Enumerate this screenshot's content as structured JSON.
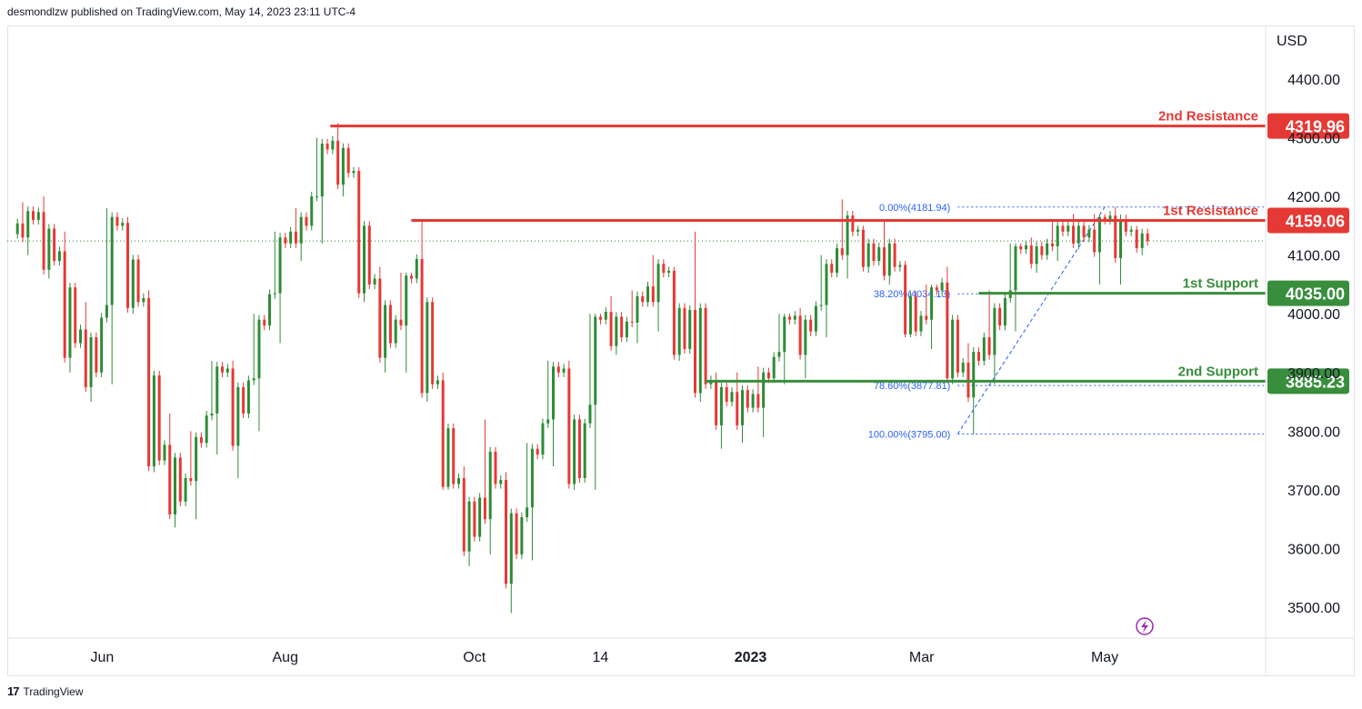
{
  "header": {
    "published": "desmondlzw published on TradingView.com, May 14, 2023 23:11 UTC-4"
  },
  "footer": {
    "brand": "TradingView",
    "logo": "tradingview-logo-icon"
  },
  "colors": {
    "up": "#2e8b36",
    "down": "#e53935",
    "resistance": "#e53935",
    "support": "#388e3c",
    "fib": "#2962ff",
    "grid_dots": "#2e7d32",
    "bolt": "#9c27b0"
  },
  "chart_data": {
    "type": "candlestick",
    "currency": "USD",
    "y_ticks": [
      "4400.00",
      "4300.00",
      "4200.00",
      "4100.00",
      "4000.00",
      "3900.00",
      "3800.00",
      "3700.00",
      "3600.00",
      "3500.00"
    ],
    "ylim": [
      3475,
      4475
    ],
    "x_ticks": [
      {
        "label": "Jun",
        "date": "2022-06-01",
        "bold": false
      },
      {
        "label": "Aug",
        "date": "2022-08-01",
        "bold": false
      },
      {
        "label": "Oct",
        "date": "2022-10-03",
        "bold": false
      },
      {
        "label": "14",
        "date": "2022-11-14",
        "bold": false
      },
      {
        "label": "2023",
        "date": "2023-01-03",
        "bold": true
      },
      {
        "label": "Mar",
        "date": "2023-03-01",
        "bold": false
      },
      {
        "label": "May",
        "date": "2023-05-01",
        "bold": false
      }
    ],
    "levels": [
      {
        "name": "2nd Resistance",
        "value": 4319.96,
        "tag": "4319.96",
        "kind": "resistance",
        "from": "2022-08-16"
      },
      {
        "name": "1st Resistance",
        "value": 4159.06,
        "tag": "4159.06",
        "kind": "resistance",
        "from": "2022-09-12"
      },
      {
        "name": "1st Support",
        "value": 4035.0,
        "tag": "4035.00",
        "kind": "support",
        "from": "2023-03-20"
      },
      {
        "name": "2nd Support",
        "value": 3885.23,
        "tag": "3885.23",
        "kind": "support",
        "from": "2022-12-19"
      }
    ],
    "last_price": 4124,
    "fibonacci": {
      "from": "2023-03-13",
      "levels": [
        {
          "label": "0.00%(4181.94)",
          "value": 4181.94
        },
        {
          "label": "38.20%(4034.13)",
          "value": 4034.13
        },
        {
          "label": "78.60%(3877.81)",
          "value": 3877.81
        },
        {
          "label": "100.00%(3795.00)",
          "value": 3795.0
        }
      ],
      "trend": [
        {
          "date": "2023-03-13",
          "value": 3795.0
        },
        {
          "date": "2023-05-01",
          "value": 4181.94
        }
      ]
    },
    "candles": [
      {
        "d": "2022-05-02",
        "o": 4136,
        "h": 4190,
        "l": 4100,
        "c": 4160
      },
      {
        "d": "2022-05-09",
        "o": 4160,
        "h": 4200,
        "l": 4060,
        "c": 4090
      },
      {
        "d": "2022-05-16",
        "o": 4090,
        "h": 4140,
        "l": 3900,
        "c": 3950
      },
      {
        "d": "2022-05-23",
        "o": 3950,
        "h": 4020,
        "l": 3850,
        "c": 3900
      },
      {
        "d": "2022-05-30",
        "o": 3900,
        "h": 4180,
        "l": 3880,
        "c": 4150
      },
      {
        "d": "2022-06-06",
        "o": 4150,
        "h": 4165,
        "l": 4000,
        "c": 4020
      },
      {
        "d": "2022-06-13",
        "o": 4020,
        "h": 4040,
        "l": 3730,
        "c": 3750
      },
      {
        "d": "2022-06-20",
        "o": 3750,
        "h": 3830,
        "l": 3636,
        "c": 3680
      },
      {
        "d": "2022-06-27",
        "o": 3680,
        "h": 3800,
        "l": 3650,
        "c": 3780
      },
      {
        "d": "2022-07-04",
        "o": 3780,
        "h": 3920,
        "l": 3760,
        "c": 3900
      },
      {
        "d": "2022-07-11",
        "o": 3900,
        "h": 3920,
        "l": 3720,
        "c": 3830
      },
      {
        "d": "2022-07-18",
        "o": 3830,
        "h": 4000,
        "l": 3800,
        "c": 3980
      },
      {
        "d": "2022-07-25",
        "o": 3980,
        "h": 4140,
        "l": 3950,
        "c": 4120
      },
      {
        "d": "2022-08-01",
        "o": 4120,
        "h": 4180,
        "l": 4090,
        "c": 4150
      },
      {
        "d": "2022-08-08",
        "o": 4150,
        "h": 4300,
        "l": 4120,
        "c": 4280
      },
      {
        "d": "2022-08-15",
        "o": 4280,
        "h": 4325,
        "l": 4200,
        "c": 4240
      },
      {
        "d": "2022-08-22",
        "o": 4240,
        "h": 4250,
        "l": 4020,
        "c": 4050
      },
      {
        "d": "2022-08-29",
        "o": 4050,
        "h": 4080,
        "l": 3900,
        "c": 3950
      },
      {
        "d": "2022-09-05",
        "o": 3950,
        "h": 4070,
        "l": 3900,
        "c": 4060
      },
      {
        "d": "2022-09-12",
        "o": 4060,
        "h": 4160,
        "l": 3850,
        "c": 3880
      },
      {
        "d": "2022-09-19",
        "o": 3880,
        "h": 3900,
        "l": 3700,
        "c": 3710
      },
      {
        "d": "2022-09-26",
        "o": 3710,
        "h": 3740,
        "l": 3570,
        "c": 3620
      },
      {
        "d": "2022-10-03",
        "o": 3620,
        "h": 3820,
        "l": 3590,
        "c": 3710
      },
      {
        "d": "2022-10-10",
        "o": 3710,
        "h": 3730,
        "l": 3490,
        "c": 3590
      },
      {
        "d": "2022-10-17",
        "o": 3590,
        "h": 3780,
        "l": 3580,
        "c": 3760
      },
      {
        "d": "2022-10-24",
        "o": 3760,
        "h": 3920,
        "l": 3740,
        "c": 3900
      },
      {
        "d": "2022-10-31",
        "o": 3900,
        "h": 3920,
        "l": 3700,
        "c": 3720
      },
      {
        "d": "2022-11-07",
        "o": 3720,
        "h": 4000,
        "l": 3700,
        "c": 3990
      },
      {
        "d": "2022-11-14",
        "o": 3990,
        "h": 4030,
        "l": 3930,
        "c": 3960
      },
      {
        "d": "2022-11-21",
        "o": 3960,
        "h": 4040,
        "l": 3950,
        "c": 4020
      },
      {
        "d": "2022-11-28",
        "o": 4020,
        "h": 4100,
        "l": 3970,
        "c": 4070
      },
      {
        "d": "2022-12-05",
        "o": 4070,
        "h": 4080,
        "l": 3920,
        "c": 3940
      },
      {
        "d": "2022-12-12",
        "o": 3940,
        "h": 4140,
        "l": 3850,
        "c": 3880
      },
      {
        "d": "2022-12-19",
        "o": 3880,
        "h": 3900,
        "l": 3770,
        "c": 3850
      },
      {
        "d": "2022-12-26",
        "o": 3850,
        "h": 3900,
        "l": 3780,
        "c": 3840
      },
      {
        "d": "2023-01-02",
        "o": 3840,
        "h": 3910,
        "l": 3790,
        "c": 3890
      },
      {
        "d": "2023-01-09",
        "o": 3890,
        "h": 4000,
        "l": 3880,
        "c": 3990
      },
      {
        "d": "2023-01-16",
        "o": 3990,
        "h": 4010,
        "l": 3890,
        "c": 3970
      },
      {
        "d": "2023-01-23",
        "o": 3970,
        "h": 4100,
        "l": 3960,
        "c": 4070
      },
      {
        "d": "2023-01-30",
        "o": 4070,
        "h": 4195,
        "l": 4060,
        "c": 4140
      },
      {
        "d": "2023-02-06",
        "o": 4140,
        "h": 4150,
        "l": 4070,
        "c": 4090
      },
      {
        "d": "2023-02-13",
        "o": 4090,
        "h": 4160,
        "l": 4050,
        "c": 4080
      },
      {
        "d": "2023-02-20",
        "o": 4080,
        "h": 4090,
        "l": 3960,
        "c": 3970
      },
      {
        "d": "2023-02-27",
        "o": 3970,
        "h": 4050,
        "l": 3940,
        "c": 4040
      },
      {
        "d": "2023-03-06",
        "o": 4040,
        "h": 4080,
        "l": 3880,
        "c": 3900
      },
      {
        "d": "2023-03-13",
        "o": 3900,
        "h": 3950,
        "l": 3795,
        "c": 3920
      },
      {
        "d": "2023-03-20",
        "o": 3920,
        "h": 4040,
        "l": 3880,
        "c": 3980
      },
      {
        "d": "2023-03-27",
        "o": 3980,
        "h": 4120,
        "l": 3970,
        "c": 4110
      },
      {
        "d": "2023-04-03",
        "o": 4110,
        "h": 4130,
        "l": 4070,
        "c": 4100
      },
      {
        "d": "2023-04-10",
        "o": 4100,
        "h": 4160,
        "l": 4090,
        "c": 4140
      },
      {
        "d": "2023-04-17",
        "o": 4140,
        "h": 4170,
        "l": 4110,
        "c": 4130
      },
      {
        "d": "2023-04-24",
        "o": 4130,
        "h": 4170,
        "l": 4050,
        "c": 4160
      },
      {
        "d": "2023-05-01",
        "o": 4160,
        "h": 4182,
        "l": 4050,
        "c": 4140
      },
      {
        "d": "2023-05-08",
        "o": 4140,
        "h": 4150,
        "l": 4100,
        "c": 4124
      }
    ]
  }
}
